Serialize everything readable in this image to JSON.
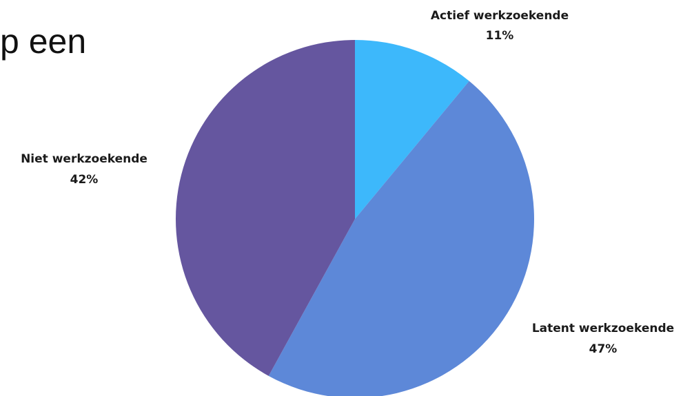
{
  "fragment_text": "p een",
  "chart_data": {
    "type": "pie",
    "title": "",
    "slices": [
      {
        "label": "Actief werkzoekende",
        "value": 11,
        "value_label": "11%",
        "color": "#3db8fb"
      },
      {
        "label": "Latent werkzoekende",
        "value": 47,
        "value_label": "47%",
        "color": "#5d88d8"
      },
      {
        "label": "Niet werkzoekende",
        "value": 42,
        "value_label": "42%",
        "color": "#65569f"
      }
    ]
  }
}
